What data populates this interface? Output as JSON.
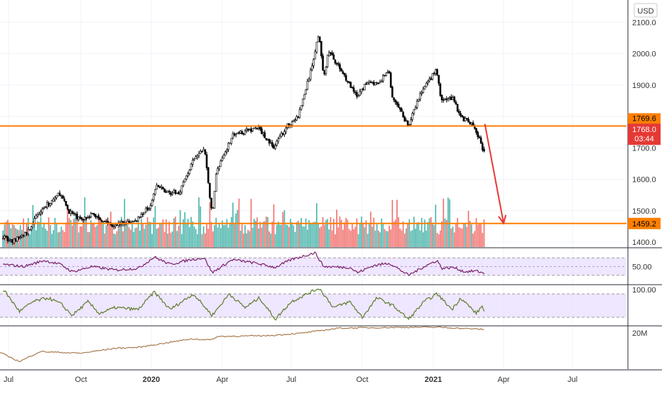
{
  "currency": "USD",
  "colors": {
    "up": "#26a69a",
    "down": "#ef5350",
    "candle": "#000000",
    "level": "#ff7f00",
    "arrow": "#e53935",
    "rsi": "#7b1f6a",
    "stoch": "#5d7b2e",
    "obv": "#a87c4f",
    "band": "#e8dcff",
    "grid": "#f0f3fa",
    "axis_text": "#333333"
  },
  "chart_data": [
    {
      "type": "line",
      "name": "price",
      "x_ticks": [
        "Jul",
        "Oct",
        "2020",
        "Apr",
        "Jul",
        "Oct",
        "2021",
        "Apr",
        "Jul"
      ],
      "y_ticks": [
        1400,
        1500,
        1600,
        1700,
        1800,
        1900,
        2000,
        2100
      ],
      "ylim": [
        1385,
        2115
      ],
      "anchors": [
        [
          "2019-06-25",
          1420
        ],
        [
          "2019-07-05",
          1400
        ],
        [
          "2019-07-25",
          1430
        ],
        [
          "2019-08-10",
          1500
        ],
        [
          "2019-08-20",
          1520
        ],
        [
          "2019-09-04",
          1555
        ],
        [
          "2019-09-15",
          1500
        ],
        [
          "2019-10-01",
          1470
        ],
        [
          "2019-10-15",
          1490
        ],
        [
          "2019-11-10",
          1455
        ],
        [
          "2019-12-10",
          1465
        ],
        [
          "2019-12-30",
          1515
        ],
        [
          "2020-01-08",
          1580
        ],
        [
          "2020-01-20",
          1560
        ],
        [
          "2020-02-05",
          1555
        ],
        [
          "2020-02-24",
          1660
        ],
        [
          "2020-03-09",
          1700
        ],
        [
          "2020-03-19",
          1480
        ],
        [
          "2020-03-24",
          1620
        ],
        [
          "2020-04-14",
          1740
        ],
        [
          "2020-05-18",
          1765
        ],
        [
          "2020-06-08",
          1700
        ],
        [
          "2020-06-24",
          1765
        ],
        [
          "2020-07-10",
          1800
        ],
        [
          "2020-07-27",
          1950
        ],
        [
          "2020-08-06",
          2070
        ],
        [
          "2020-08-12",
          1915
        ],
        [
          "2020-08-18",
          2010
        ],
        [
          "2020-09-08",
          1930
        ],
        [
          "2020-09-24",
          1860
        ],
        [
          "2020-10-09",
          1915
        ],
        [
          "2020-10-22",
          1900
        ],
        [
          "2020-11-04",
          1950
        ],
        [
          "2020-11-09",
          1860
        ],
        [
          "2020-11-30",
          1770
        ],
        [
          "2020-12-15",
          1870
        ],
        [
          "2021-01-05",
          1950
        ],
        [
          "2021-01-11",
          1850
        ],
        [
          "2021-01-27",
          1860
        ],
        [
          "2021-02-04",
          1800
        ],
        [
          "2021-02-19",
          1775
        ],
        [
          "2021-02-26",
          1745
        ],
        [
          "2021-03-05",
          1700
        ],
        [
          "2021-03-08",
          1690
        ]
      ],
      "levels": [
        {
          "label": "1769.6",
          "value": 1769.6
        },
        {
          "label": "1459.2",
          "value": 1459.2
        }
      ],
      "current": {
        "price": "1768.0",
        "countdown": "03:44",
        "value": 1768.0
      },
      "arrow": {
        "from": [
          "2021-03-08",
          1776
        ],
        "to": [
          "2021-04-01",
          1460
        ]
      }
    },
    {
      "type": "line",
      "name": "rsi",
      "y_ticks": [
        50
      ],
      "ylim": [
        10,
        90
      ],
      "band": [
        30,
        70
      ],
      "anchors": [
        [
          "2019-06-25",
          55
        ],
        [
          "2019-07-20",
          50
        ],
        [
          "2019-08-15",
          64
        ],
        [
          "2019-09-05",
          55
        ],
        [
          "2019-09-20",
          38
        ],
        [
          "2019-10-15",
          50
        ],
        [
          "2019-11-15",
          42
        ],
        [
          "2019-12-15",
          46
        ],
        [
          "2020-01-05",
          72
        ],
        [
          "2020-01-25",
          55
        ],
        [
          "2020-02-20",
          66
        ],
        [
          "2020-03-09",
          70
        ],
        [
          "2020-03-19",
          36
        ],
        [
          "2020-04-14",
          66
        ],
        [
          "2020-05-15",
          58
        ],
        [
          "2020-06-10",
          48
        ],
        [
          "2020-07-01",
          66
        ],
        [
          "2020-08-01",
          82
        ],
        [
          "2020-08-12",
          50
        ],
        [
          "2020-09-15",
          48
        ],
        [
          "2020-09-25",
          36
        ],
        [
          "2020-10-15",
          52
        ],
        [
          "2020-11-05",
          58
        ],
        [
          "2020-11-30",
          30
        ],
        [
          "2020-12-20",
          50
        ],
        [
          "2021-01-06",
          64
        ],
        [
          "2021-01-12",
          46
        ],
        [
          "2021-01-27",
          48
        ],
        [
          "2021-02-10",
          38
        ],
        [
          "2021-02-25",
          40
        ],
        [
          "2021-03-08",
          34
        ]
      ]
    },
    {
      "type": "line",
      "name": "stoch",
      "y_ticks": [
        100
      ],
      "ylim": [
        0,
        100
      ],
      "band": [
        20,
        80
      ],
      "anchors": [
        [
          "2019-06-25",
          90
        ],
        [
          "2019-07-15",
          35
        ],
        [
          "2019-08-01",
          60
        ],
        [
          "2019-08-20",
          70
        ],
        [
          "2019-09-05",
          55
        ],
        [
          "2019-09-20",
          25
        ],
        [
          "2019-10-10",
          60
        ],
        [
          "2019-10-25",
          30
        ],
        [
          "2019-11-15",
          45
        ],
        [
          "2019-12-15",
          40
        ],
        [
          "2020-01-05",
          85
        ],
        [
          "2020-01-25",
          40
        ],
        [
          "2020-02-24",
          80
        ],
        [
          "2020-03-19",
          25
        ],
        [
          "2020-04-10",
          80
        ],
        [
          "2020-05-01",
          45
        ],
        [
          "2020-05-20",
          70
        ],
        [
          "2020-06-10",
          15
        ],
        [
          "2020-07-01",
          60
        ],
        [
          "2020-08-06",
          95
        ],
        [
          "2020-08-25",
          45
        ],
        [
          "2020-09-15",
          60
        ],
        [
          "2020-10-01",
          20
        ],
        [
          "2020-10-20",
          70
        ],
        [
          "2020-11-10",
          50
        ],
        [
          "2020-11-30",
          15
        ],
        [
          "2020-12-20",
          60
        ],
        [
          "2021-01-06",
          80
        ],
        [
          "2021-01-25",
          40
        ],
        [
          "2021-02-05",
          70
        ],
        [
          "2021-02-25",
          30
        ],
        [
          "2021-03-05",
          50
        ],
        [
          "2021-03-08",
          30
        ]
      ]
    },
    {
      "type": "line",
      "name": "obv",
      "y_ticks": [
        "20M"
      ],
      "ylim": [
        0,
        1
      ],
      "anchors": [
        [
          "2019-06-20",
          0.4
        ],
        [
          "2019-07-15",
          0.18
        ],
        [
          "2019-08-10",
          0.42
        ],
        [
          "2019-10-01",
          0.38
        ],
        [
          "2019-11-15",
          0.5
        ],
        [
          "2019-12-15",
          0.52
        ],
        [
          "2020-02-20",
          0.72
        ],
        [
          "2020-03-19",
          0.7
        ],
        [
          "2020-03-25",
          0.78
        ],
        [
          "2020-06-01",
          0.8
        ],
        [
          "2020-07-15",
          0.86
        ],
        [
          "2020-09-01",
          0.98
        ],
        [
          "2020-10-15",
          0.99
        ],
        [
          "2020-12-01",
          1.0
        ],
        [
          "2021-01-10",
          1.0
        ],
        [
          "2021-02-10",
          0.97
        ],
        [
          "2021-03-08",
          0.95
        ]
      ]
    }
  ]
}
